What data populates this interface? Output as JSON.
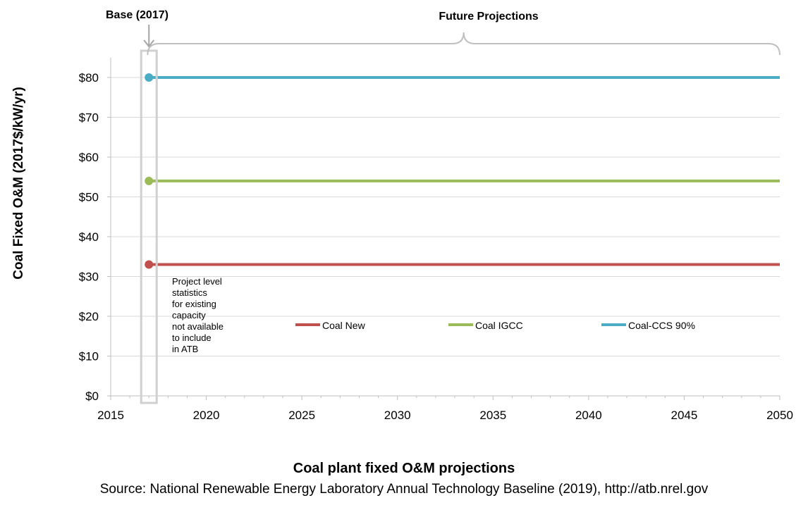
{
  "chart_data": {
    "type": "line",
    "title": "Coal plant fixed O&M projections",
    "source": "Source: National Renewable Energy Laboratory Annual Technology Baseline (2019), http://atb.nrel.gov",
    "xlabel": "",
    "ylabel": "Coal Fixed O&M (2017$/kW/yr)",
    "xlim": [
      2015,
      2050
    ],
    "ylim": [
      0,
      85
    ],
    "x_ticks": [
      2015,
      2020,
      2025,
      2030,
      2035,
      2040,
      2045,
      2050
    ],
    "x_tick_labels": [
      "2015",
      "2020",
      "2025",
      "2030",
      "2035",
      "2040",
      "2045",
      "2050"
    ],
    "y_ticks": [
      0,
      10,
      20,
      30,
      40,
      50,
      60,
      70,
      80
    ],
    "y_tick_labels": [
      "$0",
      "$10",
      "$20",
      "$30",
      "$40",
      "$50",
      "$60",
      "$70",
      "$80"
    ],
    "grid": "horizontal",
    "legend_position": "center",
    "series": [
      {
        "name": "Coal New",
        "color": "#c0504d",
        "base": {
          "x": 2017,
          "y": 33
        },
        "x": [
          2017,
          2050
        ],
        "values": [
          33,
          33
        ]
      },
      {
        "name": "Coal IGCC",
        "color": "#9bbb59",
        "base": {
          "x": 2017,
          "y": 54
        },
        "x": [
          2017,
          2050
        ],
        "values": [
          54,
          54
        ]
      },
      {
        "name": "Coal-CCS 90%",
        "color": "#4bacc6",
        "base": {
          "x": 2017,
          "y": 80
        },
        "x": [
          2017,
          2050
        ],
        "values": [
          80,
          80
        ]
      }
    ],
    "annotations": {
      "base_label": "Base (2017)",
      "base_year": 2017,
      "future_label": "Future Projections",
      "future_range": [
        2017.3,
        2050
      ],
      "note_lines": [
        "Project level",
        "statistics",
        "for existing",
        "capacity",
        "not available",
        "to include",
        "in ATB"
      ]
    }
  }
}
